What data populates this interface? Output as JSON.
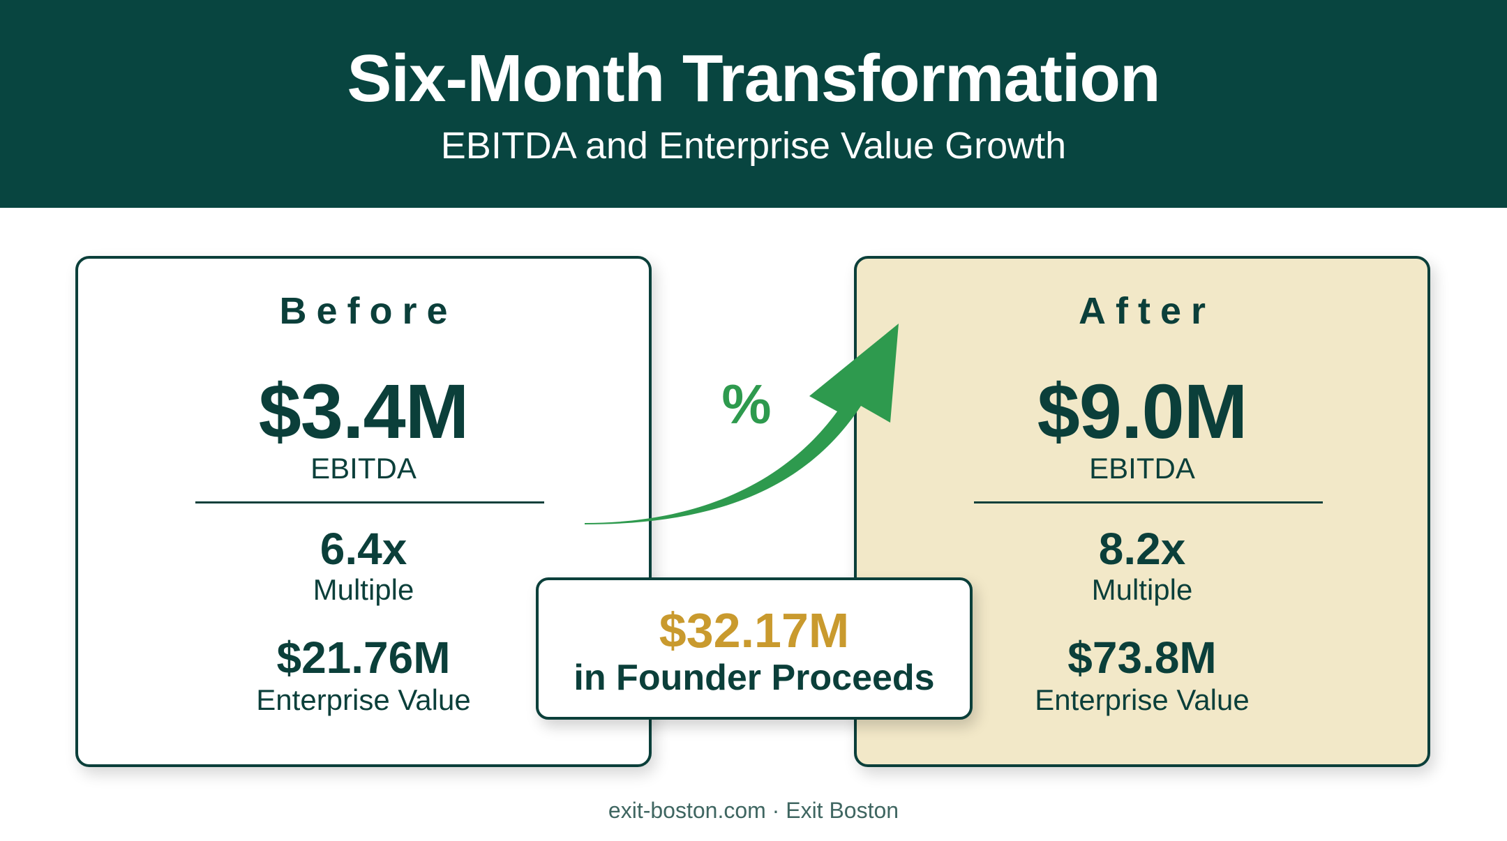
{
  "header": {
    "title": "Six-Month Transformation",
    "subtitle": "EBITDA and Enterprise Value Growth"
  },
  "before": {
    "label": "Before",
    "ebitda_value": "$3.4M",
    "ebitda_label": "EBITDA",
    "multiple_value": "6.4x",
    "multiple_label": "Multiple",
    "ev_value": "$21.76M",
    "ev_label": "Enterprise Value"
  },
  "after": {
    "label": "After",
    "ebitda_value": "$9.0M",
    "ebitda_label": "EBITDA",
    "multiple_value": "8.2x",
    "multiple_label": "Multiple",
    "ev_value": "$73.8M",
    "ev_label": "Enterprise Value"
  },
  "growth": {
    "symbol": "%"
  },
  "proceeds": {
    "value": "$32.17M",
    "label": "in Founder Proceeds"
  },
  "footer": {
    "text": "exit-boston.com · Exit Boston"
  },
  "colors": {
    "header_bg": "#084540",
    "text_dark": "#0b3f3a",
    "after_bg": "#f2e8c8",
    "arrow_green": "#2e9a4e",
    "gold": "#c99a2e"
  },
  "icons": {
    "growth_arrow": "curved-up-arrow-icon"
  }
}
